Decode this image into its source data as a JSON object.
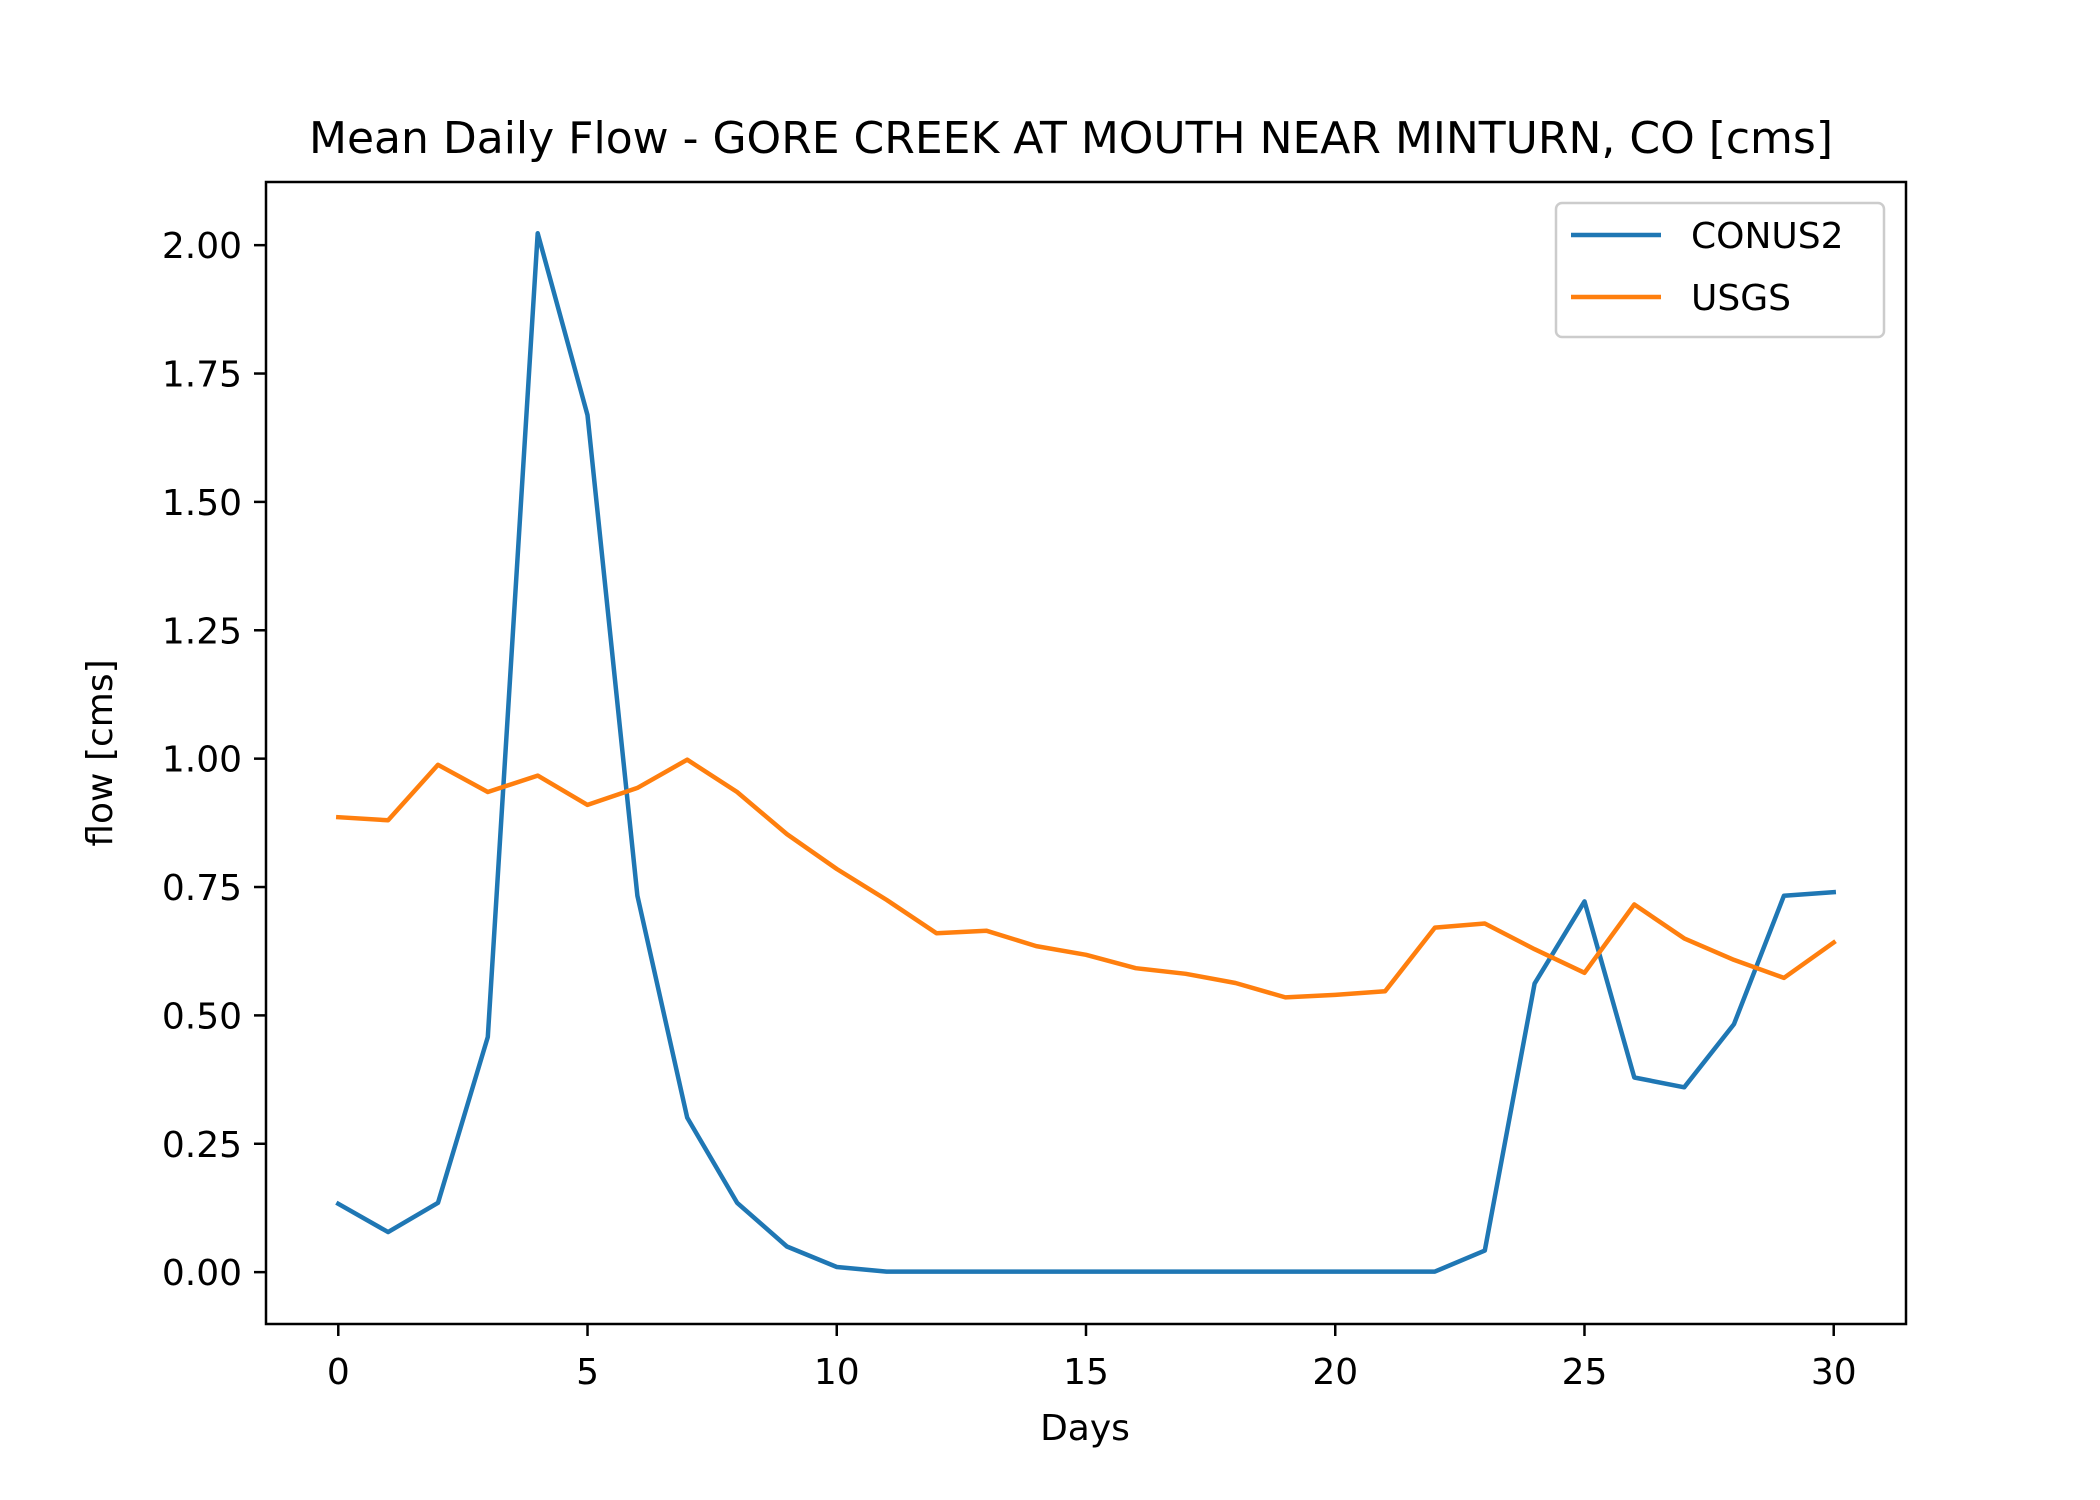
{
  "chart_data": {
    "type": "line",
    "title": "Mean Daily Flow - GORE CREEK AT MOUTH NEAR MINTURN, CO [cms]",
    "xlabel": "Days",
    "ylabel": "flow [cms]",
    "xlim": [
      -1.45,
      31.45
    ],
    "ylim": [
      -0.101,
      2.123
    ],
    "x_ticks": [
      0,
      5,
      10,
      15,
      20,
      25,
      30
    ],
    "x_tick_labels": [
      "0",
      "5",
      "10",
      "15",
      "20",
      "25",
      "30"
    ],
    "y_ticks": [
      0,
      0.25,
      0.5,
      0.75,
      1.0,
      1.25,
      1.5,
      1.75,
      2.0
    ],
    "y_tick_labels": [
      "0.00",
      "0.25",
      "0.50",
      "0.75",
      "1.00",
      "1.25",
      "1.50",
      "1.75",
      "2.00"
    ],
    "grid": false,
    "legend_position": "top-right",
    "x": [
      0,
      1,
      2,
      3,
      4,
      5,
      6,
      7,
      8,
      9,
      10,
      11,
      12,
      13,
      14,
      15,
      16,
      17,
      18,
      19,
      20,
      21,
      22,
      23,
      24,
      25,
      26,
      27,
      28,
      29,
      30
    ],
    "series": [
      {
        "name": "CONUS2",
        "color": "#1f77b4",
        "values": [
          0.133,
          0.078,
          0.135,
          0.458,
          2.023,
          1.669,
          0.733,
          0.301,
          0.135,
          0.05,
          0.01,
          0.001,
          0.001,
          0.001,
          0.001,
          0.001,
          0.001,
          0.001,
          0.001,
          0.001,
          0.001,
          0.001,
          0.001,
          0.042,
          0.562,
          0.722,
          0.379,
          0.36,
          0.483,
          0.733,
          0.74
        ]
      },
      {
        "name": "USGS",
        "color": "#ff7f0e",
        "values": [
          0.886,
          0.88,
          0.988,
          0.935,
          0.967,
          0.91,
          0.943,
          0.998,
          0.935,
          0.853,
          0.785,
          0.725,
          0.66,
          0.665,
          0.635,
          0.618,
          0.592,
          0.581,
          0.563,
          0.535,
          0.54,
          0.547,
          0.671,
          0.679,
          0.629,
          0.583,
          0.716,
          0.65,
          0.608,
          0.573,
          0.642
        ]
      }
    ]
  }
}
